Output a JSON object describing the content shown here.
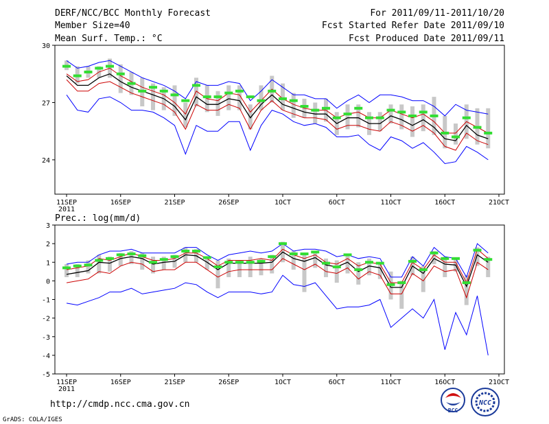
{
  "header": {
    "left": [
      "DERF/NCC/BCC Monthly Forecast",
      "Member Size=40",
      "Mean Surf. Temp.: °C"
    ],
    "right": [
      "For 2011/09/11-2011/10/20",
      "Fcst Started Refer Date 2011/09/10",
      "Fcst Produced Date 2011/09/11"
    ]
  },
  "footer": {
    "url": "http://cmdp.ncc.cma.gov.cn",
    "credit": "GrADS: COLA/IGES",
    "logo_bcc": "BCC",
    "logo_ncc": "NCC"
  },
  "colors": {
    "max_min": "#0000ff",
    "spread": "#cc0000",
    "mean": "#000000",
    "median": "#33dd33",
    "box": "#c8c8c8"
  },
  "chart_data": [
    {
      "type": "line",
      "title": "Mean Surf. Temp.: °C",
      "ylim": [
        22.2,
        30
      ],
      "yticks": [
        24,
        27,
        30
      ],
      "xlim": [
        0,
        40
      ],
      "xticks": [
        0,
        5,
        10,
        15,
        20,
        25,
        30,
        35,
        40
      ],
      "xtick_labels": [
        "11SEP",
        "16SEP",
        "21SEP",
        "26SEP",
        "1OCT",
        "6OCT",
        "11OCT",
        "16OCT",
        "21OCT"
      ],
      "xtick_sub": "2011",
      "x": [
        0,
        1,
        2,
        3,
        4,
        5,
        6,
        7,
        8,
        9,
        10,
        11,
        12,
        13,
        14,
        15,
        16,
        17,
        18,
        19,
        20,
        21,
        22,
        23,
        24,
        25,
        26,
        27,
        28,
        29,
        30,
        31,
        32,
        33,
        34,
        35,
        36,
        37,
        38,
        39
      ],
      "series": [
        {
          "name": "max",
          "values": [
            29.2,
            28.8,
            28.9,
            29.1,
            29.2,
            28.9,
            28.6,
            28.3,
            28.1,
            27.9,
            27.6,
            27.2,
            28.1,
            27.9,
            27.9,
            28.1,
            28.0,
            27.1,
            27.6,
            28.2,
            27.8,
            27.4,
            27.4,
            27.2,
            27.2,
            26.7,
            27.1,
            27.4,
            27.0,
            27.4,
            27.4,
            27.3,
            27.1,
            27.1,
            26.8,
            26.3,
            26.9,
            26.6,
            26.5,
            26.4
          ]
        },
        {
          "name": "upper",
          "values": [
            28.5,
            28.1,
            28.2,
            28.6,
            28.8,
            28.4,
            28.1,
            27.8,
            27.6,
            27.4,
            27.0,
            26.4,
            27.6,
            27.2,
            27.1,
            27.5,
            27.4,
            26.5,
            27.1,
            27.7,
            27.2,
            26.9,
            26.7,
            26.6,
            26.6,
            26.2,
            26.4,
            26.5,
            26.2,
            26.2,
            26.6,
            26.4,
            26.2,
            26.4,
            26.0,
            25.4,
            25.4,
            26.0,
            25.7,
            25.4
          ]
        },
        {
          "name": "mean",
          "values": [
            28.4,
            27.9,
            27.9,
            28.3,
            28.5,
            28.1,
            27.8,
            27.6,
            27.4,
            27.2,
            26.8,
            26.1,
            27.3,
            26.9,
            26.9,
            27.2,
            27.1,
            26.2,
            26.9,
            27.4,
            26.9,
            26.7,
            26.5,
            26.4,
            26.4,
            25.9,
            26.2,
            26.2,
            25.9,
            25.9,
            26.3,
            26.1,
            25.8,
            26.1,
            25.7,
            25.1,
            25.0,
            25.8,
            25.3,
            25.1
          ]
        },
        {
          "name": "lower",
          "values": [
            28.2,
            27.6,
            27.6,
            28.0,
            28.1,
            27.8,
            27.5,
            27.3,
            27.1,
            26.9,
            26.5,
            25.6,
            26.9,
            26.6,
            26.6,
            26.9,
            26.7,
            25.6,
            26.6,
            27.1,
            26.6,
            26.4,
            26.2,
            26.2,
            26.1,
            25.6,
            25.8,
            25.8,
            25.6,
            25.5,
            26.0,
            25.8,
            25.5,
            25.8,
            25.4,
            24.7,
            24.5,
            25.4,
            25.0,
            24.8
          ]
        },
        {
          "name": "min",
          "values": [
            27.4,
            26.6,
            26.5,
            27.2,
            27.3,
            27.0,
            26.6,
            26.6,
            26.5,
            26.2,
            25.8,
            24.3,
            25.8,
            25.5,
            25.5,
            26.0,
            26.0,
            24.5,
            25.8,
            26.6,
            26.4,
            26.0,
            25.8,
            25.9,
            25.7,
            25.2,
            25.2,
            25.3,
            24.8,
            24.5,
            25.2,
            25.0,
            24.6,
            24.9,
            24.4,
            23.8,
            23.9,
            24.7,
            24.4,
            24.0
          ]
        },
        {
          "name": "median",
          "values": [
            28.9,
            28.4,
            28.6,
            28.8,
            28.9,
            28.5,
            28.0,
            27.6,
            27.8,
            27.6,
            27.4,
            27.1,
            27.9,
            27.3,
            27.3,
            27.5,
            27.6,
            27.3,
            27.1,
            27.6,
            27.2,
            27.1,
            26.8,
            26.6,
            26.7,
            26.2,
            26.4,
            26.7,
            26.2,
            26.2,
            26.6,
            26.5,
            26.3,
            26.5,
            26.3,
            25.4,
            25.2,
            26.2,
            25.7,
            25.4
          ]
        }
      ],
      "boxes": [
        [
          28.7,
          29.2
        ],
        [
          28.0,
          28.9
        ],
        [
          28.3,
          28.9
        ],
        [
          28.3,
          28.9
        ],
        [
          28.3,
          29.3
        ],
        [
          27.5,
          29.0
        ],
        [
          27.4,
          28.6
        ],
        [
          26.8,
          28.3
        ],
        [
          26.6,
          28.0
        ],
        [
          26.6,
          27.8
        ],
        [
          26.3,
          27.9
        ],
        [
          25.7,
          27.0
        ],
        [
          26.8,
          28.3
        ],
        [
          26.5,
          27.9
        ],
        [
          26.3,
          27.6
        ],
        [
          26.6,
          27.9
        ],
        [
          26.6,
          27.9
        ],
        [
          25.6,
          26.9
        ],
        [
          26.6,
          27.9
        ],
        [
          27.0,
          28.4
        ],
        [
          26.6,
          28.0
        ],
        [
          26.2,
          27.5
        ],
        [
          26.2,
          27.2
        ],
        [
          25.9,
          27.0
        ],
        [
          26.0,
          27.2
        ],
        [
          25.3,
          26.5
        ],
        [
          25.6,
          26.9
        ],
        [
          25.7,
          26.9
        ],
        [
          25.3,
          26.5
        ],
        [
          25.5,
          26.5
        ],
        [
          25.9,
          26.9
        ],
        [
          25.6,
          26.9
        ],
        [
          25.2,
          26.8
        ],
        [
          25.5,
          26.9
        ],
        [
          25.3,
          27.3
        ],
        [
          24.6,
          26.3
        ],
        [
          24.8,
          25.9
        ],
        [
          25.1,
          26.9
        ],
        [
          24.8,
          26.7
        ],
        [
          24.6,
          26.7
        ]
      ]
    },
    {
      "type": "line",
      "title": "Prec.: log(mm/d)",
      "ylim": [
        -5,
        3
      ],
      "yticks": [
        -5,
        -4,
        -3,
        -2,
        -1,
        0,
        1,
        2,
        3
      ],
      "xlim": [
        0,
        40
      ],
      "xticks": [
        0,
        5,
        10,
        15,
        20,
        25,
        30,
        35,
        40
      ],
      "xtick_labels": [
        "11SEP",
        "16SEP",
        "21SEP",
        "26SEP",
        "1OCT",
        "6OCT",
        "11OCT",
        "16OCT",
        "21OCT"
      ],
      "xtick_sub": "2011",
      "x": [
        0,
        1,
        2,
        3,
        4,
        5,
        6,
        7,
        8,
        9,
        10,
        11,
        12,
        13,
        14,
        15,
        16,
        17,
        18,
        19,
        20,
        21,
        22,
        23,
        24,
        25,
        26,
        27,
        28,
        29,
        30,
        31,
        32,
        33,
        34,
        35,
        36,
        37,
        38,
        39
      ],
      "series": [
        {
          "name": "max",
          "values": [
            0.9,
            1.0,
            1.0,
            1.4,
            1.6,
            1.6,
            1.7,
            1.5,
            1.5,
            1.5,
            1.5,
            1.8,
            1.8,
            1.4,
            1.1,
            1.4,
            1.5,
            1.6,
            1.5,
            1.6,
            2.0,
            1.6,
            1.7,
            1.7,
            1.6,
            1.3,
            1.4,
            1.2,
            1.3,
            1.2,
            0.2,
            0.2,
            1.3,
            0.8,
            1.8,
            1.3,
            1.2,
            0.2,
            2.0,
            1.5
          ]
        },
        {
          "name": "upper",
          "values": [
            0.6,
            0.7,
            0.8,
            1.2,
            1.1,
            1.3,
            1.5,
            1.3,
            1.1,
            1.1,
            1.2,
            1.5,
            1.5,
            1.2,
            0.8,
            1.1,
            1.1,
            1.1,
            1.2,
            1.1,
            1.7,
            1.4,
            1.2,
            1.4,
            1.0,
            0.9,
            1.2,
            0.8,
            1.0,
            0.9,
            -0.1,
            -0.1,
            1.0,
            0.6,
            1.4,
            1.0,
            1.0,
            -0.1,
            1.7,
            1.2
          ]
        },
        {
          "name": "mean",
          "values": [
            0.35,
            0.45,
            0.55,
            1.0,
            0.95,
            1.2,
            1.3,
            1.2,
            0.9,
            1.0,
            1.05,
            1.4,
            1.35,
            1.0,
            0.6,
            0.95,
            0.95,
            0.95,
            0.95,
            1.0,
            1.55,
            1.2,
            1.05,
            1.25,
            0.85,
            0.75,
            1.0,
            0.5,
            0.8,
            0.7,
            -0.35,
            -0.35,
            0.8,
            0.4,
            1.2,
            0.9,
            0.85,
            -0.3,
            1.4,
            1.0
          ]
        },
        {
          "name": "lower",
          "values": [
            -0.1,
            0.0,
            0.1,
            0.5,
            0.4,
            0.8,
            1.0,
            0.9,
            0.5,
            0.6,
            0.6,
            1.0,
            1.0,
            0.6,
            0.2,
            0.5,
            0.6,
            0.6,
            0.6,
            0.6,
            1.2,
            0.9,
            0.6,
            0.9,
            0.5,
            0.4,
            0.7,
            0.1,
            0.5,
            0.3,
            -0.7,
            -0.7,
            0.4,
            0.0,
            0.8,
            0.5,
            0.6,
            -0.9,
            1.0,
            0.6
          ]
        },
        {
          "name": "min",
          "values": [
            -1.2,
            -1.3,
            -1.1,
            -0.9,
            -0.6,
            -0.6,
            -0.4,
            -0.7,
            -0.6,
            -0.5,
            -0.4,
            -0.1,
            -0.2,
            -0.6,
            -0.9,
            -0.6,
            -0.6,
            -0.6,
            -0.7,
            -0.6,
            0.3,
            -0.2,
            -0.3,
            -0.1,
            -0.8,
            -1.5,
            -1.4,
            -1.4,
            -1.3,
            -1.0,
            -2.5,
            -2.0,
            -1.5,
            -2.0,
            -1.0,
            -3.7,
            -1.7,
            -2.9,
            -0.8,
            -4.0
          ]
        },
        {
          "name": "median",
          "values": [
            0.7,
            0.8,
            0.85,
            1.1,
            1.2,
            1.4,
            1.45,
            1.35,
            1.0,
            1.15,
            1.3,
            1.6,
            1.6,
            1.25,
            0.75,
            1.0,
            1.0,
            1.0,
            1.05,
            1.3,
            2.0,
            1.45,
            1.45,
            1.55,
            0.95,
            0.75,
            1.4,
            0.6,
            1.0,
            0.95,
            -0.2,
            -0.1,
            1.05,
            0.6,
            1.5,
            1.2,
            1.2,
            -0.1,
            1.65,
            1.15
          ]
        }
      ],
      "boxes": [
        [
          0.2,
          0.9
        ],
        [
          0.2,
          0.9
        ],
        [
          0.4,
          1.1
        ],
        [
          0.4,
          1.4
        ],
        [
          0.5,
          1.3
        ],
        [
          0.8,
          1.5
        ],
        [
          0.9,
          1.6
        ],
        [
          0.6,
          1.5
        ],
        [
          0.4,
          1.3
        ],
        [
          0.6,
          1.3
        ],
        [
          0.7,
          1.4
        ],
        [
          1.0,
          1.8
        ],
        [
          1.0,
          1.7
        ],
        [
          0.6,
          1.3
        ],
        [
          -0.4,
          1.1
        ],
        [
          0.2,
          1.2
        ],
        [
          0.2,
          1.1
        ],
        [
          0.2,
          1.3
        ],
        [
          0.3,
          1.2
        ],
        [
          0.4,
          1.4
        ],
        [
          1.0,
          2.1
        ],
        [
          0.6,
          1.6
        ],
        [
          -0.6,
          1.4
        ],
        [
          0.7,
          1.6
        ],
        [
          0.2,
          1.2
        ],
        [
          -0.1,
          1.1
        ],
        [
          0.4,
          1.4
        ],
        [
          -0.2,
          1.0
        ],
        [
          0.3,
          1.2
        ],
        [
          0.1,
          1.0
        ],
        [
          -1.0,
          0.5
        ],
        [
          -1.5,
          0.0
        ],
        [
          0.3,
          1.3
        ],
        [
          -0.6,
          0.8
        ],
        [
          0.9,
          1.6
        ],
        [
          0.2,
          1.3
        ],
        [
          0.5,
          1.2
        ],
        [
          -1.3,
          0.3
        ],
        [
          0.8,
          1.8
        ],
        [
          0.2,
          1.3
        ]
      ]
    }
  ]
}
